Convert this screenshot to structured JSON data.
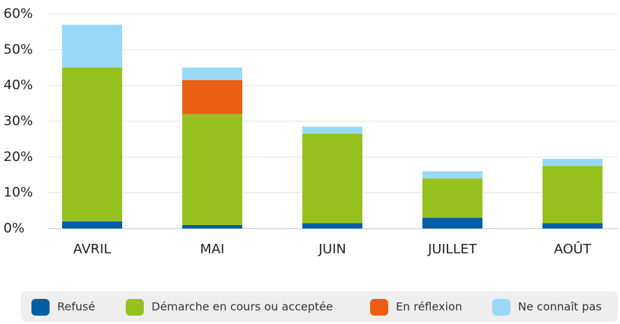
{
  "chart_data": {
    "type": "stacked_bar",
    "categories": [
      "AVRIL",
      "MAI",
      "JUIN",
      "JUILLET",
      "AOÛT"
    ],
    "series": [
      {
        "name": "Refusé",
        "color": "#005da6",
        "values": [
          2,
          1,
          1.5,
          3,
          1.5
        ]
      },
      {
        "name": "Démarche en cours ou acceptée",
        "color": "#96c11f",
        "values": [
          43,
          31,
          25,
          11,
          16
        ]
      },
      {
        "name": "En réflexion",
        "color": "#ec5f12",
        "values": [
          0,
          9.5,
          0,
          0,
          0
        ]
      },
      {
        "name": "Ne connaît pas",
        "color": "#99d8f7",
        "values": [
          12,
          3.5,
          2,
          2,
          2
        ]
      }
    ],
    "ylim": [
      0,
      60
    ],
    "yticks": [
      {
        "value": 0,
        "label": "0%"
      },
      {
        "value": 10,
        "label": "10%"
      },
      {
        "value": 20,
        "label": "20%"
      },
      {
        "value": 30,
        "label": "30%"
      },
      {
        "value": 40,
        "label": "40%"
      },
      {
        "value": 50,
        "label": "50%"
      },
      {
        "value": 60,
        "label": "60%"
      }
    ],
    "grid": true,
    "legend": "bottom"
  }
}
